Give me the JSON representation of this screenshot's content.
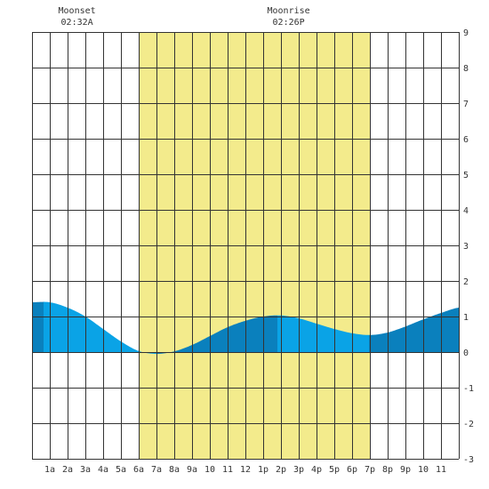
{
  "chart_data": {
    "type": "area",
    "title": "",
    "xlabel": "",
    "ylabel": "",
    "xlim": [
      0,
      24
    ],
    "ylim": [
      -3,
      9
    ],
    "grid": true,
    "x_tick_labels": [
      "1a",
      "2a",
      "3a",
      "4a",
      "5a",
      "6a",
      "7a",
      "8a",
      "9a",
      "10",
      "11",
      "12",
      "1p",
      "2p",
      "3p",
      "4p",
      "5p",
      "6p",
      "7p",
      "8p",
      "9p",
      "10",
      "11"
    ],
    "y_ticks": [
      -3,
      -2,
      -1,
      0,
      1,
      2,
      3,
      4,
      5,
      6,
      7,
      8,
      9
    ],
    "daylight_hours": [
      6.0,
      19.0
    ],
    "annotations": [
      {
        "label": "Moonset",
        "time": "02:32A",
        "hour": 2.53
      },
      {
        "label": "Moonrise",
        "time": "02:26P",
        "hour": 14.43
      }
    ],
    "series": [
      {
        "x": [
          0,
          1,
          2,
          3,
          4,
          5,
          6,
          7,
          8,
          9,
          10,
          11,
          12,
          13,
          14,
          15,
          16,
          17,
          18,
          19,
          20,
          21,
          22,
          23,
          24
        ],
        "values": [
          1.4,
          1.4,
          1.25,
          1.0,
          0.65,
          0.3,
          0.03,
          -0.05,
          0.02,
          0.2,
          0.45,
          0.7,
          0.88,
          1.0,
          1.03,
          0.95,
          0.8,
          0.65,
          0.53,
          0.48,
          0.55,
          0.72,
          0.92,
          1.1,
          1.25
        ]
      }
    ],
    "colors": {
      "daylight": "#f3eb8c",
      "tide_light": "#0aa3e6",
      "tide_dark": "#0a80bd",
      "grid": "#333333"
    }
  }
}
